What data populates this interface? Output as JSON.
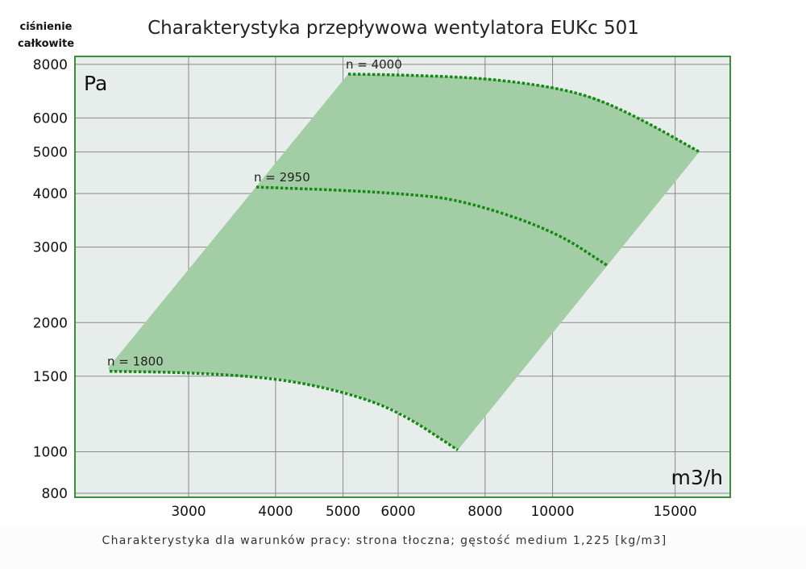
{
  "chart_data": {
    "type": "line",
    "title": "Charakterystyka przepływowa wentylatora EUKc 501",
    "ylabel_lines": [
      "ciśnienie",
      "całkowite"
    ],
    "y_unit": "Pa",
    "x_unit": "m3/h",
    "footnote": "Charakterystyka dla warunków pracy: strona tłoczna; gęstość medium 1,225 [kg/m3]",
    "x_scale": "log",
    "y_scale": "log",
    "xlim": [
      2060,
      18000
    ],
    "ylim": [
      783,
      8350
    ],
    "x_ticks": [
      3000,
      4000,
      5000,
      6000,
      8000,
      10000,
      15000
    ],
    "x_tick_labels": [
      "3000",
      "4000",
      "5000",
      "6000",
      "8000",
      "10000",
      "15000"
    ],
    "y_ticks": [
      800,
      1000,
      1500,
      2000,
      3000,
      4000,
      5000,
      6000,
      8000
    ],
    "y_tick_labels": [
      "800",
      "1000",
      "1500",
      "2000",
      "3000",
      "4000",
      "5000",
      "6000",
      "8000"
    ],
    "grid": true,
    "series": [
      {
        "name": "n = 4000",
        "x": [
          5086,
          6100,
          8000,
          10000,
          11560,
          13560,
          16250
        ],
        "y": [
          7594,
          7560,
          7430,
          7086,
          6670,
          5905,
          5000
        ]
      },
      {
        "name": "n = 2950",
        "x": [
          3753,
          5000,
          6000,
          7350,
          10000,
          12030
        ],
        "y": [
          4140,
          4070,
          4000,
          3880,
          3290,
          2707
        ]
      },
      {
        "name": "n = 1800",
        "x": [
          2310,
          3000,
          4000,
          5000,
          6000,
          7310
        ],
        "y": [
          1540,
          1530,
          1485,
          1381,
          1245,
          1009
        ]
      }
    ],
    "operating_area": {
      "corner_bottom_left": [
        2300,
        1570
      ]
    },
    "colors": {
      "plot_bg": "#e7edea",
      "fill": "#a3cda5",
      "curve": "#138a13",
      "frame": "#3a8f3a",
      "grid": "#8a8a8a"
    }
  }
}
